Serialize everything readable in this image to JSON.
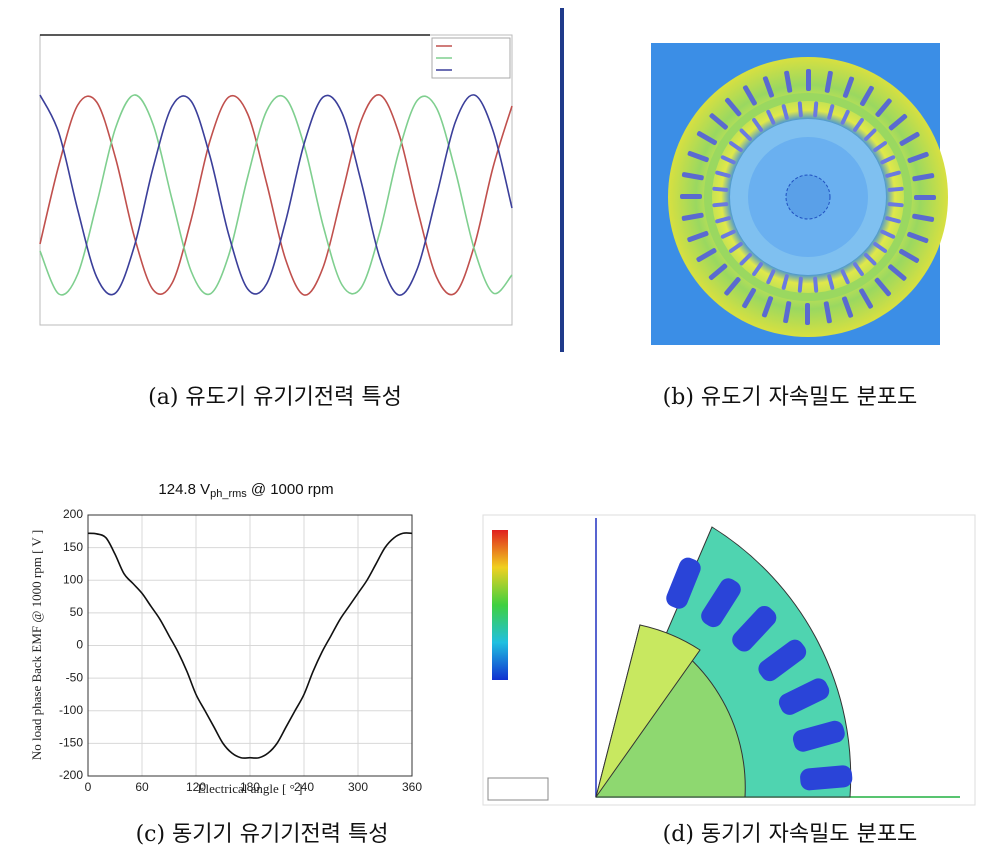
{
  "captions": [
    "(a) 유도기 유기기전력 특성",
    "(b) 유도기 자속밀도 분포도",
    "(c) 동기기 유기기전력 특성",
    "(d) 동기기 자속밀도 분포도"
  ],
  "chart_data": [
    {
      "type": "line",
      "xlim": [
        0,
        1
      ],
      "ylim": [
        -1.3,
        1.6
      ],
      "x": [
        0,
        0.04,
        0.08,
        0.12,
        0.16,
        0.2,
        0.24,
        0.28,
        0.32,
        0.36,
        0.4,
        0.44,
        0.48,
        0.52,
        0.56,
        0.6,
        0.64,
        0.68,
        0.72,
        0.76,
        0.8,
        0.84,
        0.88,
        0.92,
        0.96,
        1.0
      ],
      "series": [
        {
          "color": "#c0504d",
          "values": [
            -0.49,
            0.3,
            0.9,
            0.93,
            0.37,
            -0.42,
            -0.95,
            -0.88,
            -0.25,
            0.54,
            0.98,
            0.81,
            0.12,
            -0.64,
            -1.0,
            -0.72,
            0.01,
            0.74,
            1.0,
            0.62,
            -0.15,
            -0.82,
            -0.98,
            -0.51,
            0.28,
            0.89
          ]
        },
        {
          "color": "#7fcf8f",
          "values": [
            -0.56,
            -0.99,
            -0.79,
            -0.09,
            0.67,
            1.0,
            0.7,
            -0.05,
            -0.76,
            -0.99,
            -0.6,
            0.18,
            0.84,
            0.97,
            0.49,
            -0.31,
            -0.9,
            -0.93,
            -0.37,
            0.43,
            0.95,
            0.87,
            0.24,
            -0.54,
            -0.98,
            -0.8
          ]
        },
        {
          "color": "#3b3f9a",
          "values": [
            1.0,
            0.62,
            -0.15,
            -0.82,
            -0.98,
            -0.51,
            0.28,
            0.89,
            0.94,
            0.39,
            -0.4,
            -0.94,
            -0.89,
            -0.27,
            0.52,
            0.98,
            0.82,
            0.14,
            -0.63,
            -1.0,
            -0.73,
            -0.01,
            0.73,
            1.0,
            0.64,
            -0.13
          ]
        }
      ]
    },
    {
      "type": "line",
      "title": [
        "124.8 V",
        "ph_rms",
        "@ 1000 rpm"
      ],
      "x_label": "Electrical angle [ ° ]",
      "y_label": "No load phase Back EMF @ 1000 rpm [ V ]",
      "xlim": [
        0,
        360
      ],
      "ylim": [
        -200,
        200
      ],
      "xticks": [
        0,
        60,
        120,
        180,
        240,
        300,
        360
      ],
      "yticks": [
        -200,
        -150,
        -100,
        -50,
        0,
        50,
        100,
        150,
        200
      ],
      "grid": true,
      "x": [
        0,
        10,
        20,
        30,
        40,
        50,
        60,
        70,
        80,
        90,
        100,
        110,
        120,
        130,
        140,
        150,
        160,
        170,
        180,
        190,
        200,
        210,
        220,
        230,
        240,
        250,
        260,
        270,
        280,
        290,
        300,
        310,
        320,
        330,
        340,
        350,
        360
      ],
      "series": [
        {
          "color": "#111111",
          "values": [
            172,
            171,
            165,
            140,
            110,
            95,
            80,
            60,
            40,
            15,
            -10,
            -40,
            -75,
            -100,
            -125,
            -150,
            -165,
            -172,
            -172,
            -172,
            -165,
            -150,
            -125,
            -100,
            -75,
            -40,
            -10,
            15,
            40,
            60,
            80,
            100,
            125,
            150,
            165,
            172,
            172
          ]
        }
      ]
    }
  ]
}
